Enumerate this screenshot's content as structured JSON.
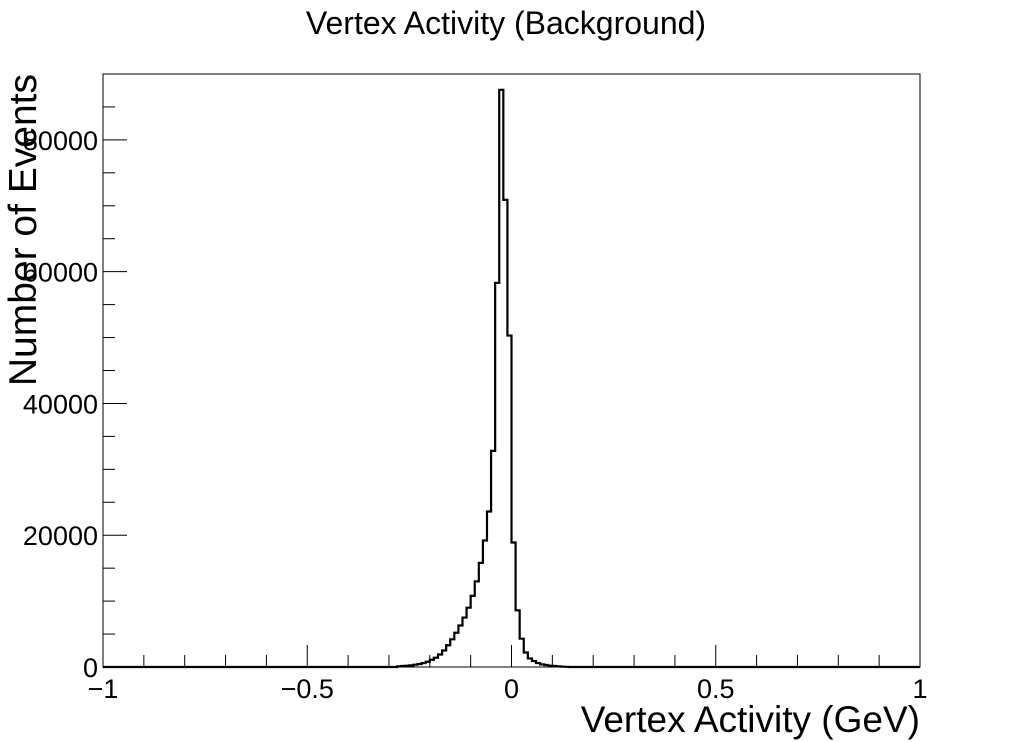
{
  "chart_data": {
    "type": "histogram",
    "title": "Vertex Activity (Background)",
    "xlabel": "Vertex Activity (GeV)",
    "ylabel": "Number of Events",
    "xlim": [
      -1,
      1
    ],
    "ylim": [
      0,
      90000
    ],
    "grid": false,
    "x_tick_labels": [
      "−1",
      "−0.5",
      "0",
      "0.5",
      "1"
    ],
    "x_tick_values": [
      -1,
      -0.5,
      0,
      0.5,
      1
    ],
    "y_tick_labels": [
      "0",
      "20000",
      "40000",
      "60000",
      "80000"
    ],
    "y_tick_values": [
      0,
      20000,
      40000,
      60000,
      80000
    ],
    "series": [
      {
        "color": "#000000",
        "bin_edges": [
          -0.28,
          -0.27,
          -0.26,
          -0.25,
          -0.24,
          -0.23,
          -0.22,
          -0.21,
          -0.2,
          -0.19,
          -0.18,
          -0.17,
          -0.16,
          -0.15,
          -0.14,
          -0.13,
          -0.12,
          -0.11,
          -0.1,
          -0.09,
          -0.08,
          -0.07,
          -0.06,
          -0.05,
          -0.04,
          -0.03,
          -0.02,
          -0.01,
          0,
          0.01,
          0.02,
          0.03,
          0.04,
          0.05,
          0.06,
          0.07,
          0.08,
          0.09,
          0.1,
          0.11,
          0.12,
          0.13,
          0.14
        ],
        "counts": [
          100,
          150,
          200,
          250,
          350,
          450,
          600,
          800,
          1100,
          1400,
          1900,
          2500,
          3300,
          4200,
          5200,
          6300,
          7500,
          9000,
          10800,
          13000,
          15800,
          19200,
          23600,
          32800,
          58300,
          87600,
          70900,
          50300,
          18900,
          8600,
          4300,
          2200,
          1300,
          900,
          600,
          400,
          300,
          200,
          150,
          100,
          50,
          30
        ]
      }
    ]
  }
}
